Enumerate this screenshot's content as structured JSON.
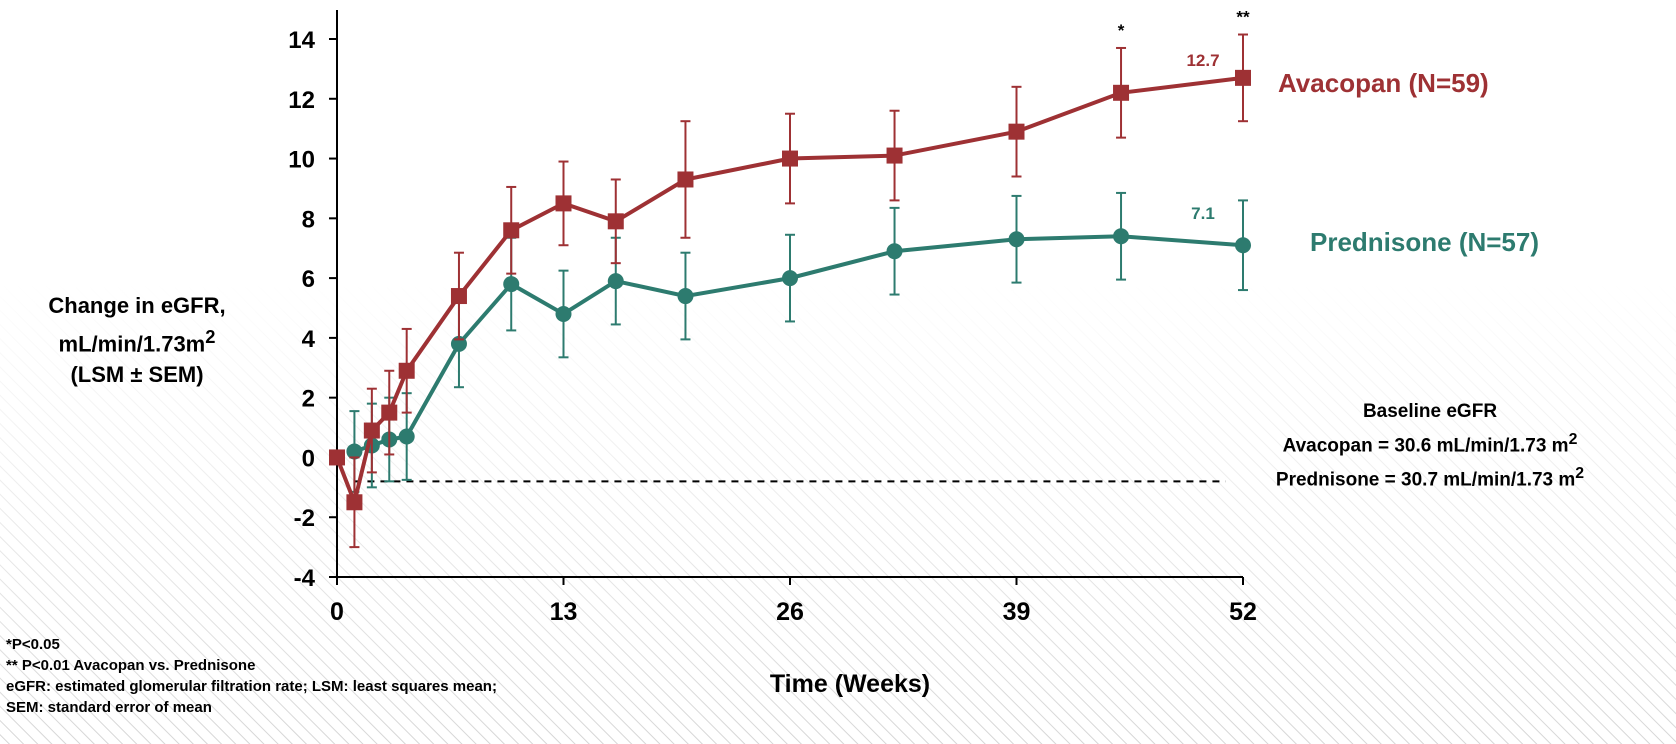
{
  "chart_data": {
    "type": "line",
    "xlabel": "Time (Weeks)",
    "ylabel": "Change in eGFR,",
    "ylabel_line2": "mL/min/1.73m",
    "ylabel_line2_sup": "2",
    "ylabel_line3": "(LSM ± SEM)",
    "xlim": [
      0,
      52
    ],
    "ylim": [
      -4,
      14
    ],
    "xticks": [
      0,
      13,
      26,
      39,
      52
    ],
    "yticks": [
      -4,
      -2,
      0,
      2,
      4,
      6,
      8,
      10,
      12,
      14
    ],
    "reference_line_y": -0.8,
    "series": [
      {
        "name": "Avacopan (N=59)",
        "color": "#9e3134",
        "marker": "square",
        "points": [
          {
            "x": 0,
            "y": 0.0,
            "sem": 0.0
          },
          {
            "x": 1,
            "y": -1.5,
            "sem": 1.5
          },
          {
            "x": 2,
            "y": 0.9,
            "sem": 1.4
          },
          {
            "x": 3,
            "y": 1.5,
            "sem": 1.4
          },
          {
            "x": 4,
            "y": 2.9,
            "sem": 1.4
          },
          {
            "x": 7,
            "y": 5.4,
            "sem": 1.45
          },
          {
            "x": 10,
            "y": 7.6,
            "sem": 1.45
          },
          {
            "x": 13,
            "y": 8.5,
            "sem": 1.4
          },
          {
            "x": 16,
            "y": 7.9,
            "sem": 1.4
          },
          {
            "x": 20,
            "y": 9.3,
            "sem": 1.95
          },
          {
            "x": 26,
            "y": 10.0,
            "sem": 1.5
          },
          {
            "x": 32,
            "y": 10.1,
            "sem": 1.5
          },
          {
            "x": 39,
            "y": 10.9,
            "sem": 1.5
          },
          {
            "x": 45,
            "y": 12.2,
            "sem": 1.5
          },
          {
            "x": 52,
            "y": 12.7,
            "sem": 1.45
          }
        ],
        "end_label": "12.7"
      },
      {
        "name": "Prednisone (N=57)",
        "color": "#2d7b6f",
        "marker": "circle",
        "points": [
          {
            "x": 1,
            "y": 0.2,
            "sem": 1.35
          },
          {
            "x": 2,
            "y": 0.4,
            "sem": 1.4
          },
          {
            "x": 3,
            "y": 0.6,
            "sem": 1.4
          },
          {
            "x": 4,
            "y": 0.7,
            "sem": 1.45
          },
          {
            "x": 7,
            "y": 3.8,
            "sem": 1.45
          },
          {
            "x": 10,
            "y": 5.8,
            "sem": 1.55
          },
          {
            "x": 13,
            "y": 4.8,
            "sem": 1.45
          },
          {
            "x": 16,
            "y": 5.9,
            "sem": 1.45
          },
          {
            "x": 20,
            "y": 5.4,
            "sem": 1.45
          },
          {
            "x": 26,
            "y": 6.0,
            "sem": 1.45
          },
          {
            "x": 32,
            "y": 6.9,
            "sem": 1.45
          },
          {
            "x": 39,
            "y": 7.3,
            "sem": 1.45
          },
          {
            "x": 45,
            "y": 7.4,
            "sem": 1.45
          },
          {
            "x": 52,
            "y": 7.1,
            "sem": 1.5
          }
        ],
        "end_label": "7.1"
      }
    ],
    "significance": [
      {
        "x": 45,
        "label": "*"
      },
      {
        "x": 52,
        "label": "**"
      }
    ]
  },
  "baseline": {
    "title": "Baseline eGFR",
    "avacopan": "Avacopan = 30.6 mL/min/1.73 m",
    "prednisone": "Prednisone = 30.7 mL/min/1.73 m",
    "sup": "2"
  },
  "footnotes": [
    "*P<0.05",
    "** P<0.01 Avacopan vs. Prednisone",
    "eGFR: estimated glomerular filtration rate; LSM: least squares mean;",
    "SEM: standard error of mean"
  ]
}
